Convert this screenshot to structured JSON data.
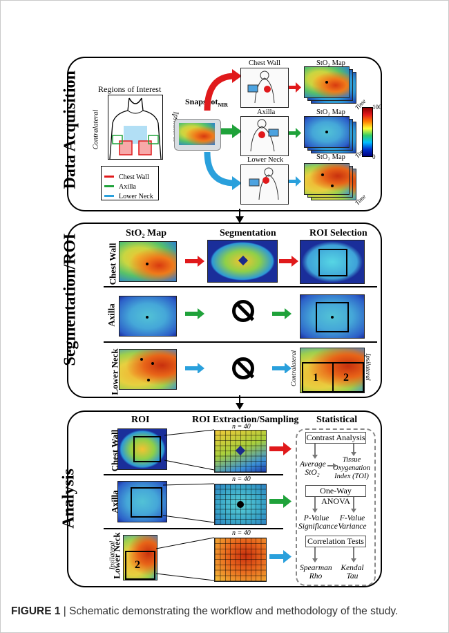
{
  "panels": {
    "acquisition": {
      "title": "Data Acquisition",
      "roi_title": "Regions of Interest",
      "contralateral": "Contralateral",
      "ipsilateral": "Ipsilateral",
      "legend": [
        {
          "label": "Chest Wall",
          "color": "#e0191b"
        },
        {
          "label": "Axilla",
          "color": "#1fa23a"
        },
        {
          "label": "Lower Neck",
          "color": "#2aa0dc"
        }
      ],
      "device_label": "Snapshot",
      "device_sub": "NIR",
      "rows": [
        {
          "label": "Chest Wall",
          "map": "StO₂ Map",
          "time": "Time"
        },
        {
          "label": "Axilla",
          "map": "StO₂ Map",
          "time": "Time"
        },
        {
          "label": "Lower Neck",
          "map": "StO₂ Map",
          "time": "Time"
        }
      ],
      "colorbar_max": "100",
      "colorbar_min": "0"
    },
    "segmentation": {
      "title": "Segmentation/ROI",
      "col_headers": [
        "StO₂ Map",
        "Segmentation",
        "ROI Selection"
      ],
      "rows": [
        "Chest Wall",
        "Axilla",
        "Lower Neck"
      ],
      "contralateral": "Contralateral",
      "ipsilateral": "Ipsilateral",
      "roi_numbers": [
        "1",
        "2"
      ]
    },
    "analysis": {
      "title": "Analysis",
      "col_headers": [
        "ROI",
        "ROI Extraction/Sampling",
        "Statistical"
      ],
      "rows": [
        "Chest Wall",
        "Axilla",
        "Lower Neck"
      ],
      "n_label": "n = 40",
      "ipsilateral": "Ipsilateral",
      "roi_number": "2",
      "stats": {
        "contrast": "Contrast Analysis",
        "avg": "Average StO₂",
        "toi": "Tissue Oxygenation Index (TOI)",
        "anova": "One-Way ANOVA",
        "pval": "P-Value Significance",
        "fval": "F-Value Variance",
        "corr": "Correlation Tests",
        "spearman": "Spearman Rho",
        "kendal": "Kendal Tau"
      }
    }
  },
  "caption": {
    "label": "FIGURE 1",
    "text": "Schematic demonstrating the workflow and methodology of the study."
  }
}
